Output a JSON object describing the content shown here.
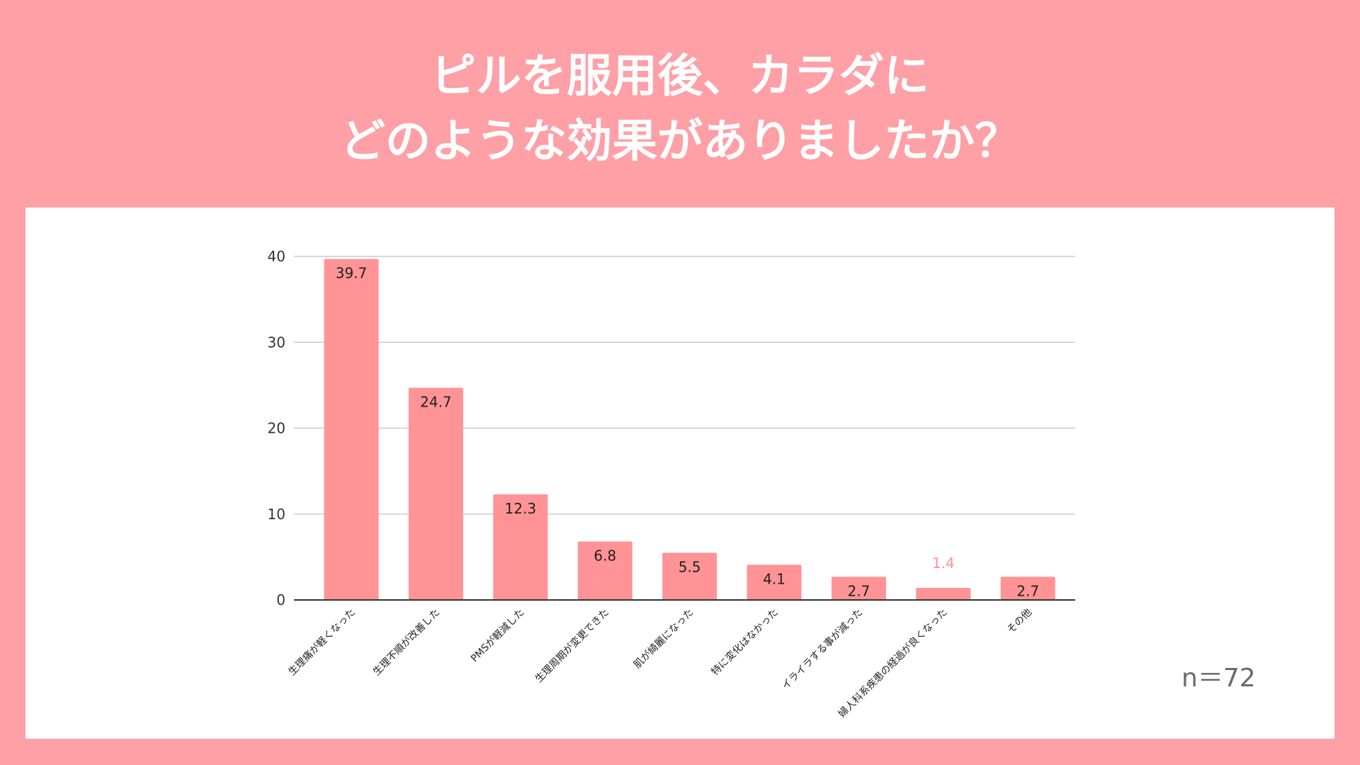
{
  "title": {
    "line1": "ピルを服用後、カラダに",
    "line2": "どのような効果がありましたか？"
  },
  "note": "n＝72",
  "colors": {
    "background": "#ff9fa6",
    "bar": "#ff9396",
    "label": "#222222",
    "label_light": "#ff9396",
    "grid": "#cccccc",
    "axis": "#333333"
  },
  "chart_data": {
    "type": "bar",
    "title": "",
    "xlabel": "",
    "ylabel": "",
    "ylim": [
      0,
      40
    ],
    "yticks": [
      0,
      10,
      20,
      30,
      40
    ],
    "grid": true,
    "categories": [
      "生理痛が軽くなった",
      "生理不順が改善した",
      "PMSが軽減した",
      "生理周期が変更できた",
      "肌が綺麗になった",
      "特に変化はなかった",
      "イライラする事が減った",
      "婦人科系疾患の経過が良くなった",
      "その他"
    ],
    "values": [
      39.7,
      24.7,
      12.3,
      6.8,
      5.5,
      4.1,
      2.7,
      1.4,
      2.7
    ],
    "data_labels": [
      "39.7",
      "24.7",
      "12.3",
      "6.8",
      "5.5",
      "4.1",
      "2.7",
      "1.4",
      "2.7"
    ]
  }
}
